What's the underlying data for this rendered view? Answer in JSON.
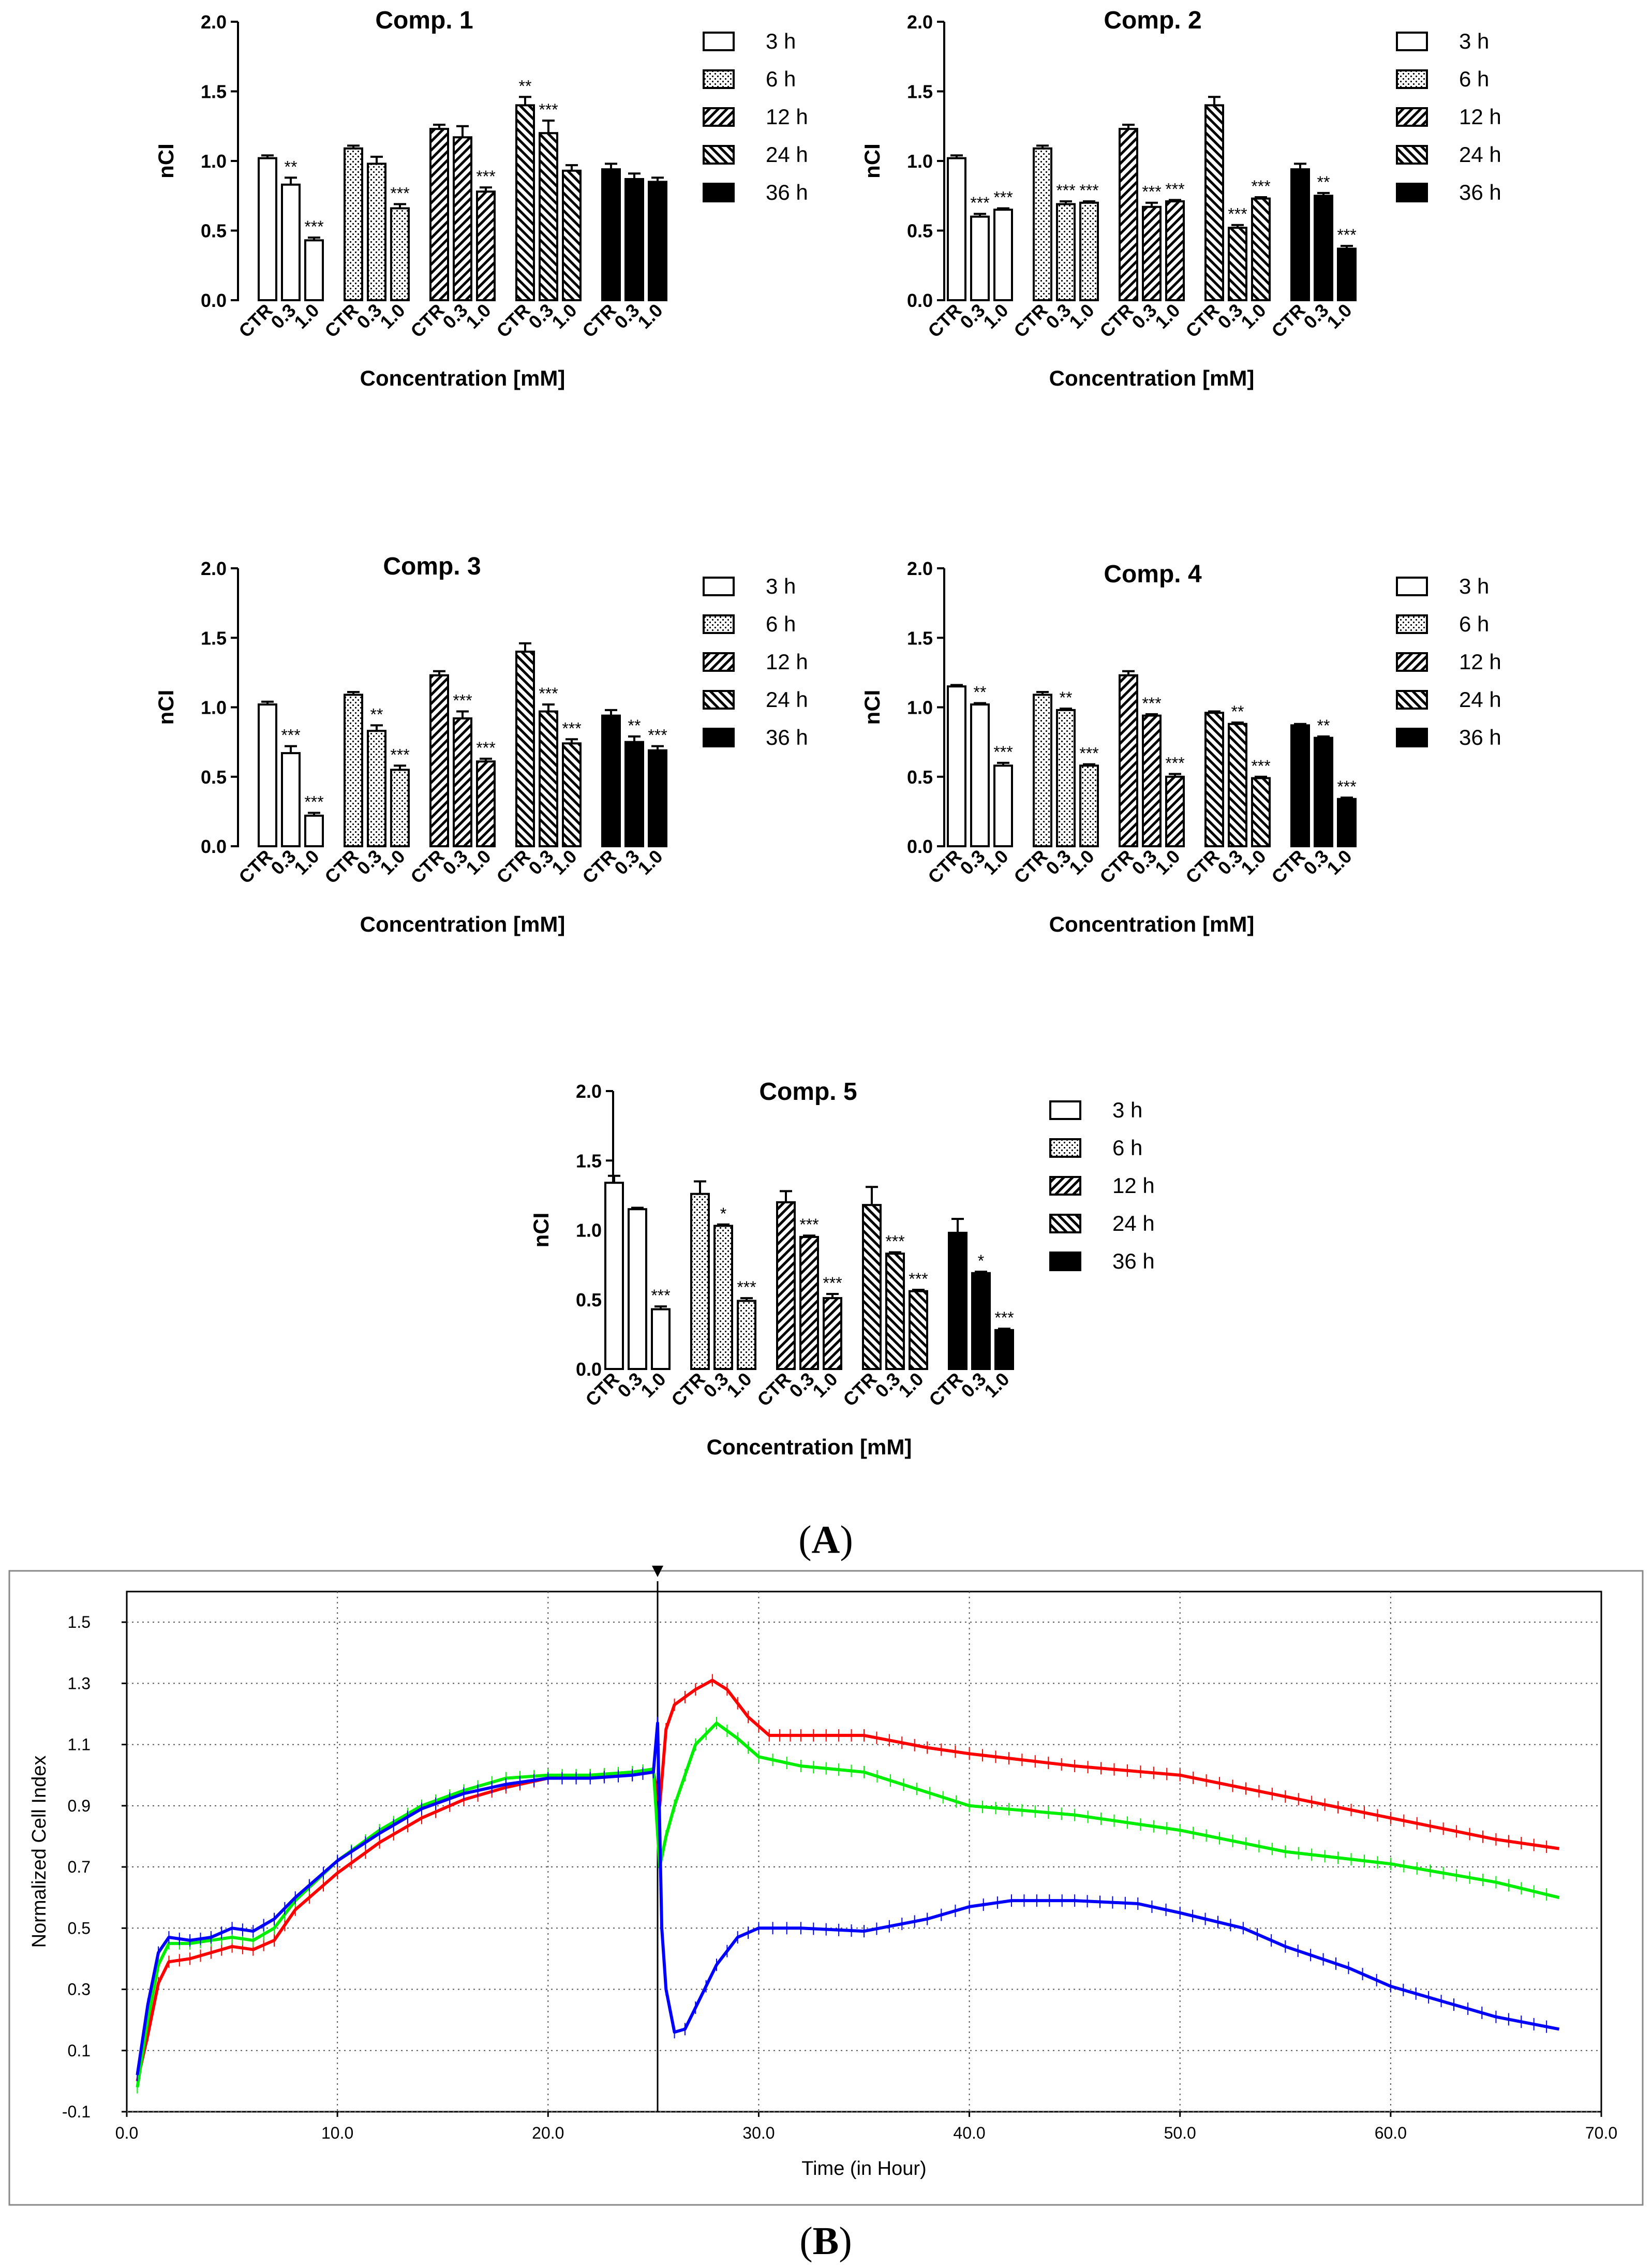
{
  "colors": {
    "red": "#ff0000",
    "green": "#00ee00",
    "blue": "#0000ff",
    "grid": "#555555",
    "bar_edge": "#000000"
  },
  "panels": [
    {
      "label_letter": "A",
      "label_open": "(",
      "label_close": ")"
    },
    {
      "label_letter": "B",
      "label_open": "(",
      "label_close": ")"
    }
  ],
  "chart_data": [
    {
      "type": "bar",
      "title": "Comp. 1",
      "xlabel": "Concentration [mM]",
      "ylabel": "nCI",
      "ylim": [
        0,
        2.0
      ],
      "yticks": [
        "0.0",
        "0.5",
        "1.0",
        "1.5",
        "2.0"
      ],
      "categories": [
        "CTR",
        "0.3",
        "1.0"
      ],
      "series": [
        {
          "name": "3 h",
          "pattern": "open",
          "values": [
            1.02,
            0.83,
            0.43
          ],
          "errors": [
            0.02,
            0.05,
            0.02
          ],
          "sig": [
            "",
            "**",
            "***"
          ]
        },
        {
          "name": "6 h",
          "pattern": "dots",
          "values": [
            1.09,
            0.98,
            0.66
          ],
          "errors": [
            0.02,
            0.05,
            0.03
          ],
          "sig": [
            "",
            "",
            "***"
          ]
        },
        {
          "name": "12 h",
          "pattern": "hatch-right",
          "values": [
            1.23,
            1.17,
            0.78
          ],
          "errors": [
            0.03,
            0.08,
            0.03
          ],
          "sig": [
            "",
            "",
            "***"
          ]
        },
        {
          "name": "24 h",
          "pattern": "hatch-left",
          "values": [
            1.4,
            1.2,
            0.93
          ],
          "errors": [
            0.06,
            0.09,
            0.04
          ],
          "sig": [
            "**",
            "***",
            ""
          ]
        },
        {
          "name": "36 h",
          "pattern": "solid",
          "values": [
            0.94,
            0.87,
            0.85
          ],
          "errors": [
            0.04,
            0.04,
            0.03
          ],
          "sig": [
            "",
            "",
            ""
          ]
        }
      ]
    },
    {
      "type": "bar",
      "title": "Comp. 2",
      "xlabel": "Concentration [mM]",
      "ylabel": "nCI",
      "ylim": [
        0,
        2.0
      ],
      "yticks": [
        "0.0",
        "0.5",
        "1.0",
        "1.5",
        "2.0"
      ],
      "categories": [
        "CTR",
        "0.3",
        "1.0"
      ],
      "series": [
        {
          "name": "3 h",
          "pattern": "open",
          "values": [
            1.02,
            0.6,
            0.65
          ],
          "errors": [
            0.02,
            0.02,
            0.01
          ],
          "sig": [
            "",
            "***",
            "***"
          ]
        },
        {
          "name": "6 h",
          "pattern": "dots",
          "values": [
            1.09,
            0.69,
            0.7
          ],
          "errors": [
            0.02,
            0.02,
            0.01
          ],
          "sig": [
            "",
            "***",
            "***"
          ]
        },
        {
          "name": "12 h",
          "pattern": "hatch-right",
          "values": [
            1.23,
            0.67,
            0.71
          ],
          "errors": [
            0.03,
            0.03,
            0.01
          ],
          "sig": [
            "",
            "***",
            "***"
          ]
        },
        {
          "name": "24 h",
          "pattern": "hatch-left",
          "values": [
            1.4,
            0.52,
            0.73
          ],
          "errors": [
            0.06,
            0.02,
            0.01
          ],
          "sig": [
            "",
            "***",
            "***"
          ]
        },
        {
          "name": "36 h",
          "pattern": "solid",
          "values": [
            0.94,
            0.75,
            0.37
          ],
          "errors": [
            0.04,
            0.02,
            0.02
          ],
          "sig": [
            "",
            "**",
            "***"
          ]
        }
      ]
    },
    {
      "type": "bar",
      "title": "Comp. 3",
      "xlabel": "Concentration [mM]",
      "ylabel": "nCI",
      "ylim": [
        0,
        2.0
      ],
      "yticks": [
        "0.0",
        "0.5",
        "1.0",
        "1.5",
        "2.0"
      ],
      "categories": [
        "CTR",
        "0.3",
        "1.0"
      ],
      "series": [
        {
          "name": "3 h",
          "pattern": "open",
          "values": [
            1.02,
            0.67,
            0.22
          ],
          "errors": [
            0.02,
            0.05,
            0.02
          ],
          "sig": [
            "",
            "***",
            "***"
          ]
        },
        {
          "name": "6 h",
          "pattern": "dots",
          "values": [
            1.09,
            0.83,
            0.55
          ],
          "errors": [
            0.02,
            0.04,
            0.03
          ],
          "sig": [
            "",
            "**",
            "***"
          ]
        },
        {
          "name": "12 h",
          "pattern": "hatch-right",
          "values": [
            1.23,
            0.92,
            0.61
          ],
          "errors": [
            0.03,
            0.05,
            0.02
          ],
          "sig": [
            "",
            "***",
            "***"
          ]
        },
        {
          "name": "24 h",
          "pattern": "hatch-left",
          "values": [
            1.4,
            0.97,
            0.74
          ],
          "errors": [
            0.06,
            0.05,
            0.03
          ],
          "sig": [
            "",
            "***",
            "***"
          ]
        },
        {
          "name": "36 h",
          "pattern": "solid",
          "values": [
            0.94,
            0.75,
            0.69
          ],
          "errors": [
            0.04,
            0.04,
            0.03
          ],
          "sig": [
            "",
            "**",
            "***"
          ]
        }
      ]
    },
    {
      "type": "bar",
      "title": "Comp. 4",
      "xlabel": "Concentration [mM]",
      "ylabel": "nCI",
      "ylim": [
        0,
        2.0
      ],
      "yticks": [
        "0.0",
        "0.5",
        "1.0",
        "1.5",
        "2.0"
      ],
      "categories": [
        "CTR",
        "0.3",
        "1.0"
      ],
      "series": [
        {
          "name": "3 h",
          "pattern": "open",
          "values": [
            1.15,
            1.02,
            0.58
          ],
          "errors": [
            0.01,
            0.01,
            0.02
          ],
          "sig": [
            "",
            "**",
            "***"
          ]
        },
        {
          "name": "6 h",
          "pattern": "dots",
          "values": [
            1.09,
            0.98,
            0.58
          ],
          "errors": [
            0.02,
            0.01,
            0.01
          ],
          "sig": [
            "",
            "**",
            "***"
          ]
        },
        {
          "name": "12 h",
          "pattern": "hatch-right",
          "values": [
            1.23,
            0.94,
            0.5
          ],
          "errors": [
            0.03,
            0.01,
            0.02
          ],
          "sig": [
            "",
            "***",
            "***"
          ]
        },
        {
          "name": "24 h",
          "pattern": "hatch-left",
          "values": [
            0.96,
            0.88,
            0.49
          ],
          "errors": [
            0.01,
            0.01,
            0.01
          ],
          "sig": [
            "",
            "**",
            "***"
          ]
        },
        {
          "name": "36 h",
          "pattern": "solid",
          "values": [
            0.87,
            0.78,
            0.34
          ],
          "errors": [
            0.01,
            0.01,
            0.01
          ],
          "sig": [
            "",
            "**",
            "***"
          ]
        }
      ]
    },
    {
      "type": "bar",
      "title": "Comp. 5",
      "xlabel": "Concentration [mM]",
      "ylabel": "nCI",
      "ylim": [
        0,
        2.0
      ],
      "yticks": [
        "0.0",
        "0.5",
        "1.0",
        "1.5",
        "2.0"
      ],
      "categories": [
        "CTR",
        "0.3",
        "1.0"
      ],
      "series": [
        {
          "name": "3 h",
          "pattern": "open",
          "values": [
            1.34,
            1.15,
            0.43
          ],
          "errors": [
            0.05,
            0.01,
            0.02
          ],
          "sig": [
            "",
            "",
            "***"
          ]
        },
        {
          "name": "6 h",
          "pattern": "dots",
          "values": [
            1.26,
            1.03,
            0.49
          ],
          "errors": [
            0.09,
            0.01,
            0.02
          ],
          "sig": [
            "",
            "*",
            "***"
          ]
        },
        {
          "name": "12 h",
          "pattern": "hatch-right",
          "values": [
            1.2,
            0.95,
            0.51
          ],
          "errors": [
            0.08,
            0.01,
            0.03
          ],
          "sig": [
            "",
            "***",
            "***"
          ]
        },
        {
          "name": "24 h",
          "pattern": "hatch-left",
          "values": [
            1.18,
            0.83,
            0.56
          ],
          "errors": [
            0.13,
            0.01,
            0.01
          ],
          "sig": [
            "",
            "***",
            "***"
          ]
        },
        {
          "name": "36 h",
          "pattern": "solid",
          "values": [
            0.98,
            0.69,
            0.28
          ],
          "errors": [
            0.1,
            0.01,
            0.01
          ],
          "sig": [
            "",
            "*",
            "***"
          ]
        }
      ]
    },
    {
      "type": "line",
      "title": "",
      "xlabel": "Time (in Hour)",
      "ylabel": "Normalized Cell Index",
      "xlim": [
        0,
        70
      ],
      "ylim": [
        -0.1,
        1.6
      ],
      "xticks": [
        "0.0",
        "10.0",
        "20.0",
        "30.0",
        "40.0",
        "50.0",
        "60.0",
        "70.0"
      ],
      "yticks": [
        "-0.1",
        "0.1",
        "0.3",
        "0.5",
        "0.7",
        "0.9",
        "1.1",
        "1.3",
        "1.5"
      ],
      "grid": true,
      "vline_x": 25.2,
      "series": [
        {
          "name": "red",
          "color": "#ff0000",
          "points": [
            [
              0.5,
              0.0
            ],
            [
              1.0,
              0.15
            ],
            [
              1.5,
              0.32
            ],
            [
              2.0,
              0.39
            ],
            [
              3.0,
              0.4
            ],
            [
              4.0,
              0.42
            ],
            [
              5.0,
              0.44
            ],
            [
              6.0,
              0.43
            ],
            [
              7.0,
              0.46
            ],
            [
              8.0,
              0.56
            ],
            [
              10.0,
              0.68
            ],
            [
              12.0,
              0.78
            ],
            [
              14.0,
              0.86
            ],
            [
              16.0,
              0.92
            ],
            [
              18.0,
              0.96
            ],
            [
              20.0,
              0.99
            ],
            [
              22.0,
              1.0
            ],
            [
              24.0,
              1.0
            ],
            [
              25.0,
              1.01
            ],
            [
              25.3,
              0.9
            ],
            [
              25.6,
              1.15
            ],
            [
              26.0,
              1.23
            ],
            [
              27.0,
              1.28
            ],
            [
              27.8,
              1.31
            ],
            [
              28.5,
              1.28
            ],
            [
              29.5,
              1.19
            ],
            [
              30.5,
              1.13
            ],
            [
              32.0,
              1.13
            ],
            [
              35.0,
              1.13
            ],
            [
              38.0,
              1.09
            ],
            [
              40.0,
              1.07
            ],
            [
              45.0,
              1.03
            ],
            [
              50.0,
              1.0
            ],
            [
              55.0,
              0.93
            ],
            [
              60.0,
              0.86
            ],
            [
              65.0,
              0.79
            ],
            [
              68.0,
              0.76
            ]
          ]
        },
        {
          "name": "green",
          "color": "#00ee00",
          "points": [
            [
              0.5,
              -0.02
            ],
            [
              1.0,
              0.2
            ],
            [
              1.5,
              0.38
            ],
            [
              2.0,
              0.45
            ],
            [
              3.0,
              0.45
            ],
            [
              4.0,
              0.46
            ],
            [
              5.0,
              0.47
            ],
            [
              6.0,
              0.46
            ],
            [
              7.0,
              0.5
            ],
            [
              8.0,
              0.59
            ],
            [
              10.0,
              0.72
            ],
            [
              12.0,
              0.82
            ],
            [
              14.0,
              0.9
            ],
            [
              16.0,
              0.95
            ],
            [
              18.0,
              0.99
            ],
            [
              20.0,
              1.0
            ],
            [
              22.0,
              1.0
            ],
            [
              24.0,
              1.01
            ],
            [
              25.0,
              1.02
            ],
            [
              25.3,
              0.7
            ],
            [
              25.6,
              0.8
            ],
            [
              26.0,
              0.9
            ],
            [
              27.0,
              1.1
            ],
            [
              28.0,
              1.17
            ],
            [
              29.0,
              1.12
            ],
            [
              30.0,
              1.06
            ],
            [
              32.0,
              1.03
            ],
            [
              35.0,
              1.01
            ],
            [
              40.0,
              0.9
            ],
            [
              45.0,
              0.87
            ],
            [
              50.0,
              0.82
            ],
            [
              55.0,
              0.75
            ],
            [
              60.0,
              0.71
            ],
            [
              65.0,
              0.65
            ],
            [
              68.0,
              0.6
            ]
          ]
        },
        {
          "name": "blue",
          "color": "#0000ff",
          "points": [
            [
              0.5,
              0.02
            ],
            [
              1.0,
              0.25
            ],
            [
              1.5,
              0.42
            ],
            [
              2.0,
              0.47
            ],
            [
              3.0,
              0.46
            ],
            [
              4.0,
              0.47
            ],
            [
              5.0,
              0.5
            ],
            [
              6.0,
              0.49
            ],
            [
              7.0,
              0.53
            ],
            [
              8.0,
              0.6
            ],
            [
              10.0,
              0.72
            ],
            [
              12.0,
              0.81
            ],
            [
              14.0,
              0.89
            ],
            [
              16.0,
              0.94
            ],
            [
              18.0,
              0.97
            ],
            [
              20.0,
              0.99
            ],
            [
              22.0,
              0.99
            ],
            [
              24.0,
              1.0
            ],
            [
              25.0,
              1.01
            ],
            [
              25.2,
              1.17
            ],
            [
              25.4,
              0.5
            ],
            [
              25.6,
              0.3
            ],
            [
              26.0,
              0.16
            ],
            [
              26.5,
              0.17
            ],
            [
              27.0,
              0.24
            ],
            [
              28.0,
              0.38
            ],
            [
              29.0,
              0.47
            ],
            [
              30.0,
              0.5
            ],
            [
              32.0,
              0.5
            ],
            [
              35.0,
              0.49
            ],
            [
              38.0,
              0.53
            ],
            [
              40.0,
              0.57
            ],
            [
              42.0,
              0.59
            ],
            [
              45.0,
              0.59
            ],
            [
              48.0,
              0.58
            ],
            [
              50.0,
              0.55
            ],
            [
              53.0,
              0.5
            ],
            [
              55.0,
              0.44
            ],
            [
              58.0,
              0.37
            ],
            [
              60.0,
              0.31
            ],
            [
              63.0,
              0.25
            ],
            [
              65.0,
              0.21
            ],
            [
              68.0,
              0.17
            ]
          ]
        }
      ]
    }
  ]
}
